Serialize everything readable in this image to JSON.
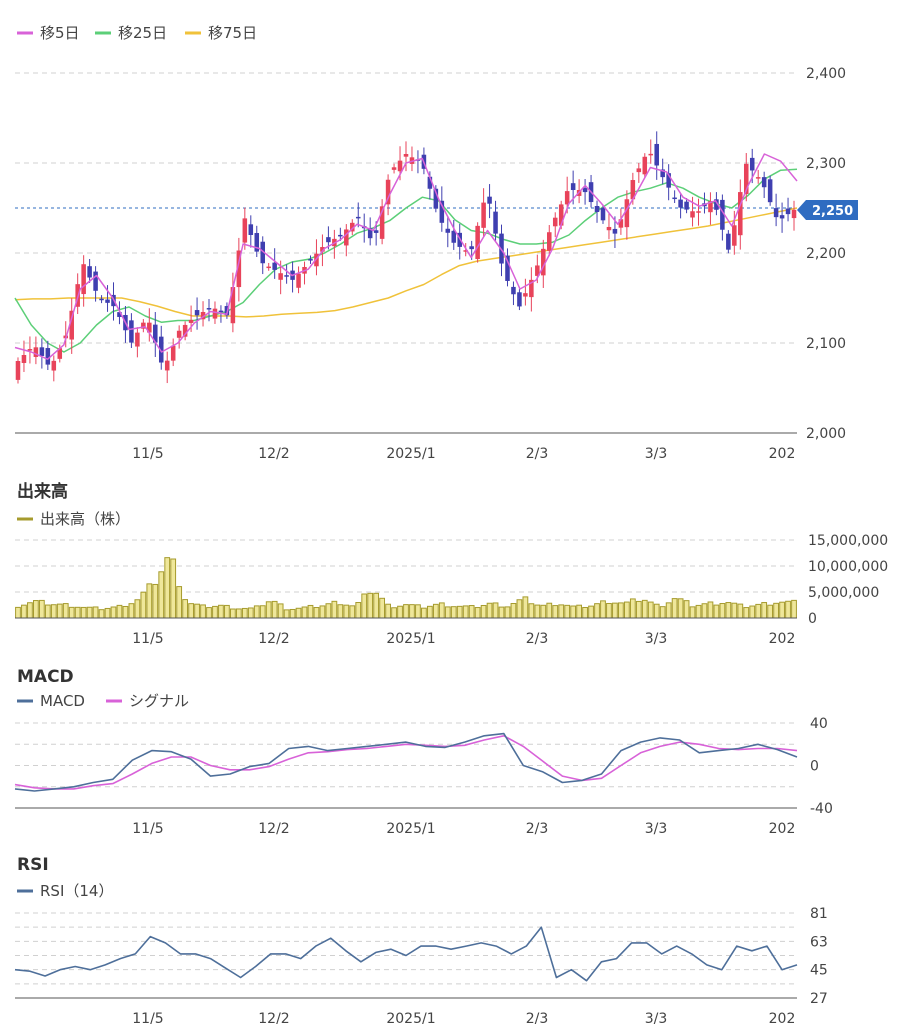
{
  "legends": {
    "price": [
      {
        "label": "移5日",
        "color": "#d862d8"
      },
      {
        "label": "移25日",
        "color": "#5ccf78"
      },
      {
        "label": "移75日",
        "color": "#f0c23a"
      }
    ],
    "volume": [
      {
        "label": "出来高（株）",
        "color": "#a69b2d"
      }
    ],
    "macd": [
      {
        "label": "MACD",
        "color": "#4e6f9a"
      },
      {
        "label": "シグナル",
        "color": "#d862d8"
      }
    ],
    "rsi": [
      {
        "label": "RSI（14）",
        "color": "#4e6f9a"
      }
    ]
  },
  "titles": {
    "volume": "出来高",
    "macd": "MACD",
    "rsi": "RSI"
  },
  "price_badge": "2,250",
  "x_labels": [
    "11/5",
    "12/2",
    "2025/1",
    "2/3",
    "3/3",
    "202"
  ],
  "chart_data": [
    {
      "type": "candlestick",
      "title": "",
      "y_ticks": [
        "2,400",
        "2,300",
        "2,200",
        "2,100",
        "2,000"
      ],
      "ylim": [
        2000,
        2400
      ],
      "reference_line": 2250,
      "colors": {
        "up": "#e8435a",
        "down": "#3f3fb0"
      },
      "candle_count": 131,
      "anchor_closes": [
        2080,
        2098,
        2072,
        2110,
        2190,
        2150,
        2140,
        2100,
        2130,
        2070,
        2115,
        2130,
        2140,
        2130,
        2240,
        2190,
        2180,
        2170,
        2190,
        2210,
        2220,
        2240,
        2210,
        2290,
        2310,
        2300,
        2240,
        2210,
        2200,
        2270,
        2180,
        2140,
        2180,
        2230,
        2270,
        2270,
        2240,
        2220,
        2280,
        2315,
        2280,
        2250,
        2245,
        2260,
        2200,
        2300,
        2280,
        2235,
        2248
      ],
      "ma5": [
        2095,
        2090,
        2082,
        2098,
        2160,
        2175,
        2150,
        2115,
        2118,
        2090,
        2100,
        2122,
        2135,
        2132,
        2210,
        2205,
        2190,
        2175,
        2182,
        2205,
        2215,
        2232,
        2225,
        2265,
        2300,
        2305,
        2260,
        2225,
        2195,
        2225,
        2200,
        2160,
        2170,
        2205,
        2255,
        2275,
        2255,
        2232,
        2262,
        2295,
        2290,
        2262,
        2252,
        2258,
        2230,
        2275,
        2310,
        2302,
        2280
      ],
      "ma25": [
        2150,
        2120,
        2100,
        2090,
        2100,
        2120,
        2135,
        2140,
        2130,
        2123,
        2125,
        2125,
        2130,
        2135,
        2145,
        2165,
        2182,
        2190,
        2193,
        2200,
        2210,
        2222,
        2228,
        2236,
        2250,
        2262,
        2258,
        2237,
        2225,
        2222,
        2215,
        2210,
        2210,
        2212,
        2220,
        2236,
        2250,
        2262,
        2268,
        2272,
        2278,
        2272,
        2262,
        2255,
        2250,
        2264,
        2282,
        2292,
        2293
      ],
      "ma75": [
        2148,
        2149,
        2149,
        2150,
        2150,
        2150,
        2150,
        2146,
        2141,
        2135,
        2130,
        2130,
        2130,
        2129,
        2130,
        2132,
        2133,
        2134,
        2136,
        2140,
        2145,
        2150,
        2158,
        2165,
        2176,
        2186,
        2191,
        2194,
        2197,
        2200,
        2203,
        2206,
        2209,
        2212,
        2215,
        2218,
        2221,
        2224,
        2227,
        2230,
        2234,
        2238,
        2242,
        2246,
        2250
      ]
    },
    {
      "type": "bar",
      "title": "出来高",
      "y_ticks": [
        "15,000,000",
        "10,000,000",
        "5,000,000",
        "0"
      ],
      "ylim": [
        0,
        15000000
      ],
      "anchor_values": [
        2400000,
        3200000,
        2700000,
        2500000,
        2000000,
        1800000,
        2200000,
        3300000,
        6500000,
        12200000,
        3000000,
        2200000,
        2400000,
        1900000,
        1800000,
        3500000,
        1700000,
        2000000,
        2400000,
        3100000,
        2200000,
        5800000,
        2200000,
        2600000,
        2100000,
        2700000,
        2300000,
        2100000,
        2800000,
        2300000,
        3700000,
        2300000,
        2900000,
        2100000,
        2400000,
        3300000,
        2800000,
        3800000,
        2200000,
        3900000,
        2400000,
        2800000,
        3100000,
        2200000,
        2600000,
        3100000,
        3000000
      ]
    },
    {
      "type": "line",
      "title": "MACD",
      "y_ticks": [
        "40",
        "0",
        "-40"
      ],
      "ylim": [
        -40,
        40
      ],
      "series": [
        {
          "name": "MACD",
          "color": "#4e6f9a",
          "values": [
            -22,
            -24,
            -22,
            -20,
            -16,
            -13,
            5,
            14,
            13,
            6,
            -10,
            -8,
            -1,
            2,
            16,
            18,
            14,
            16,
            18,
            20,
            22,
            18,
            17,
            22,
            28,
            30,
            0,
            -6,
            -16,
            -14,
            -8,
            14,
            22,
            26,
            24,
            12,
            14,
            16,
            20,
            15,
            8
          ]
        },
        {
          "name": "シグナル",
          "color": "#d862d8",
          "values": [
            -18,
            -21,
            -22,
            -22,
            -19,
            -17,
            -8,
            2,
            8,
            8,
            0,
            -4,
            -4,
            -1,
            6,
            12,
            13,
            15,
            16,
            18,
            20,
            19,
            18,
            19,
            24,
            28,
            18,
            4,
            -10,
            -14,
            -12,
            0,
            12,
            18,
            22,
            20,
            16,
            15,
            16,
            16,
            14
          ]
        }
      ]
    },
    {
      "type": "line",
      "title": "RSI",
      "y_ticks": [
        "81",
        "63",
        "45",
        "27"
      ],
      "ylim": [
        27,
        81
      ],
      "series": [
        {
          "name": "RSI（14）",
          "color": "#4e6f9a",
          "values": [
            45,
            44,
            41,
            45,
            47,
            45,
            48,
            52,
            55,
            66,
            62,
            55,
            55,
            52,
            46,
            40,
            47,
            55,
            55,
            52,
            60,
            65,
            57,
            50,
            56,
            58,
            54,
            60,
            60,
            58,
            60,
            62,
            60,
            55,
            60,
            72,
            40,
            45,
            38,
            50,
            52,
            62,
            62,
            55,
            60,
            55,
            48,
            45,
            60,
            57,
            60,
            45,
            48
          ]
        }
      ]
    }
  ]
}
